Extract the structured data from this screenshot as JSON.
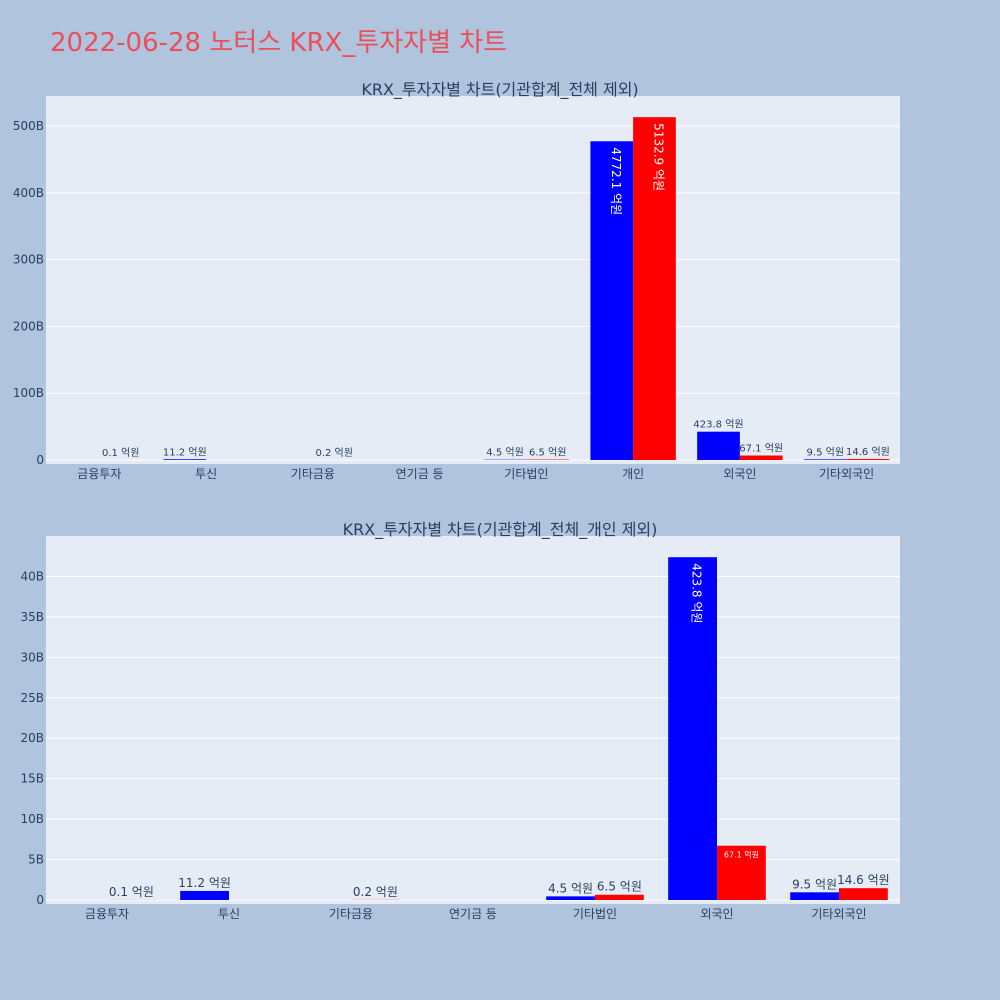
{
  "page": {
    "title": "2022-06-28 노터스 KRX_투자자별 차트"
  },
  "colors": {
    "buy": "#0000ff",
    "sell": "#ff0000",
    "plot_bg": "#e5ecf6",
    "page_bg": "#b0c4de"
  },
  "chart_data": [
    {
      "type": "bar",
      "title": "KRX_투자자별 차트(기관합계_전체 제외)",
      "categories": [
        "금융투자",
        "투신",
        "기타금융",
        "연기금 등",
        "기타법인",
        "개인",
        "외국인",
        "기타외국인"
      ],
      "series": [
        {
          "color": "#0000ff",
          "values": [
            0,
            1.12,
            0,
            0,
            0.45,
            477.21,
            42.38,
            0.95
          ],
          "labels": [
            "",
            "11.2 억원",
            "",
            "",
            "4.5 억원",
            "4772.1 억원",
            "423.8 억원",
            "9.5 억원"
          ]
        },
        {
          "color": "#ff0000",
          "values": [
            0.01,
            0,
            0.02,
            0,
            0.65,
            513.29,
            6.71,
            1.46
          ],
          "labels": [
            "0.1 억원",
            "",
            "0.2 억원",
            "",
            "6.5 억원",
            "5132.9 억원",
            "67.1 억원",
            "14.6 억원"
          ]
        }
      ],
      "value_unit": "B",
      "yticks": [
        "0",
        "100B",
        "200B",
        "300B",
        "400B",
        "500B"
      ],
      "ylim": [
        0,
        545
      ]
    },
    {
      "type": "bar",
      "title": "KRX_투자자별 차트(기관합계_전체_개인 제외)",
      "categories": [
        "금융투자",
        "투신",
        "기타금융",
        "연기금 등",
        "기타법인",
        "외국인",
        "기타외국인"
      ],
      "series": [
        {
          "color": "#0000ff",
          "values": [
            0,
            1.12,
            0,
            0,
            0.45,
            42.38,
            0.95
          ],
          "labels": [
            "",
            "11.2 억원",
            "",
            "",
            "4.5 억원",
            "423.8 억원",
            "9.5 억원"
          ]
        },
        {
          "color": "#ff0000",
          "values": [
            0.01,
            0,
            0.02,
            0,
            0.65,
            6.71,
            1.46
          ],
          "labels": [
            "0.1 억원",
            "",
            "0.2 억원",
            "",
            "6.5 억원",
            "67.1 억원",
            "14.6 억원"
          ]
        }
      ],
      "value_unit": "B",
      "yticks": [
        "0",
        "5B",
        "10B",
        "15B",
        "20B",
        "25B",
        "30B",
        "35B",
        "40B"
      ],
      "ylim": [
        0,
        45
      ]
    }
  ]
}
